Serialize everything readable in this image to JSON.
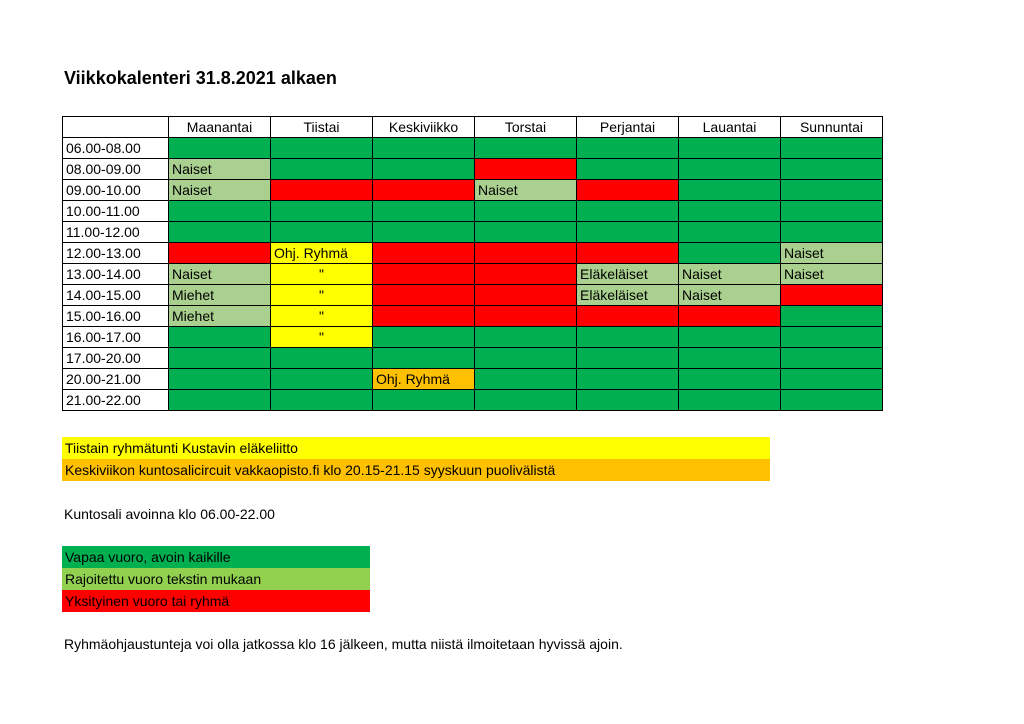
{
  "title": "Viikkokalenteri 31.8.2021 alkaen",
  "colors": {
    "G": "#00b050",
    "L": "#a9d08e",
    "R": "#ff0000",
    "Y": "#ffff00",
    "O": "#ffc000"
  },
  "days": [
    "Maanantai",
    "Tiistai",
    "Keskiviikko",
    "Torstai",
    "Perjantai",
    "Lauantai",
    "Sunnuntai"
  ],
  "rows": [
    {
      "time": "06.00-08.00",
      "cells": [
        [
          "G",
          ""
        ],
        [
          "G",
          ""
        ],
        [
          "G",
          ""
        ],
        [
          "G",
          ""
        ],
        [
          "G",
          ""
        ],
        [
          "G",
          ""
        ],
        [
          "G",
          ""
        ]
      ]
    },
    {
      "time": "08.00-09.00",
      "cells": [
        [
          "L",
          "Naiset"
        ],
        [
          "G",
          ""
        ],
        [
          "G",
          ""
        ],
        [
          "R",
          ""
        ],
        [
          "G",
          ""
        ],
        [
          "G",
          ""
        ],
        [
          "G",
          ""
        ]
      ]
    },
    {
      "time": "09.00-10.00",
      "cells": [
        [
          "L",
          "Naiset"
        ],
        [
          "R",
          ""
        ],
        [
          "R",
          ""
        ],
        [
          "L",
          "Naiset"
        ],
        [
          "R",
          ""
        ],
        [
          "G",
          ""
        ],
        [
          "G",
          ""
        ]
      ]
    },
    {
      "time": "10.00-11.00",
      "cells": [
        [
          "G",
          ""
        ],
        [
          "G",
          ""
        ],
        [
          "G",
          ""
        ],
        [
          "G",
          ""
        ],
        [
          "G",
          ""
        ],
        [
          "G",
          ""
        ],
        [
          "G",
          ""
        ]
      ]
    },
    {
      "time": "11.00-12.00",
      "cells": [
        [
          "G",
          ""
        ],
        [
          "G",
          ""
        ],
        [
          "G",
          ""
        ],
        [
          "G",
          ""
        ],
        [
          "G",
          ""
        ],
        [
          "G",
          ""
        ],
        [
          "G",
          ""
        ]
      ]
    },
    {
      "time": "12.00-13.00",
      "cells": [
        [
          "R",
          ""
        ],
        [
          "Y",
          "Ohj. Ryhmä"
        ],
        [
          "R",
          ""
        ],
        [
          "R",
          ""
        ],
        [
          "R",
          ""
        ],
        [
          "G",
          ""
        ],
        [
          "L",
          "Naiset"
        ]
      ]
    },
    {
      "time": "13.00-14.00",
      "cells": [
        [
          "L",
          "Naiset"
        ],
        [
          "Y",
          "\""
        ],
        [
          "R",
          ""
        ],
        [
          "R",
          ""
        ],
        [
          "L",
          "Eläkeläiset"
        ],
        [
          "L",
          "Naiset"
        ],
        [
          "L",
          "Naiset"
        ]
      ]
    },
    {
      "time": "14.00-15.00",
      "cells": [
        [
          "L",
          "Miehet"
        ],
        [
          "Y",
          "\""
        ],
        [
          "R",
          ""
        ],
        [
          "R",
          ""
        ],
        [
          "L",
          "Eläkeläiset"
        ],
        [
          "L",
          "Naiset"
        ],
        [
          "R",
          ""
        ]
      ]
    },
    {
      "time": "15.00-16.00",
      "cells": [
        [
          "L",
          "Miehet"
        ],
        [
          "Y",
          "\""
        ],
        [
          "R",
          ""
        ],
        [
          "R",
          ""
        ],
        [
          "R",
          ""
        ],
        [
          "R",
          ""
        ],
        [
          "G",
          ""
        ]
      ]
    },
    {
      "time": "16.00-17.00",
      "cells": [
        [
          "G",
          ""
        ],
        [
          "Y",
          "\""
        ],
        [
          "G",
          ""
        ],
        [
          "G",
          ""
        ],
        [
          "G",
          ""
        ],
        [
          "G",
          ""
        ],
        [
          "G",
          ""
        ]
      ]
    },
    {
      "time": "17.00-20.00",
      "cells": [
        [
          "G",
          ""
        ],
        [
          "G",
          ""
        ],
        [
          "G",
          ""
        ],
        [
          "G",
          ""
        ],
        [
          "G",
          ""
        ],
        [
          "G",
          ""
        ],
        [
          "G",
          ""
        ]
      ]
    },
    {
      "time": "20.00-21.00",
      "cells": [
        [
          "G",
          ""
        ],
        [
          "G",
          ""
        ],
        [
          "O",
          "Ohj. Ryhmä"
        ],
        [
          "G",
          ""
        ],
        [
          "G",
          ""
        ],
        [
          "G",
          ""
        ],
        [
          "G",
          ""
        ]
      ]
    },
    {
      "time": "21.00-22.00",
      "cells": [
        [
          "G",
          ""
        ],
        [
          "G",
          ""
        ],
        [
          "G",
          ""
        ],
        [
          "G",
          ""
        ],
        [
          "G",
          ""
        ],
        [
          "G",
          ""
        ],
        [
          "G",
          ""
        ]
      ]
    }
  ],
  "notes": {
    "yellow": "Tiistain ryhmätunti Kustavin eläkeliitto",
    "orange": "Keskiviikon kuntosalicircuit vakkaopisto.fi klo 20.15-21.15 syyskuun puolivälistä"
  },
  "open_hours": "Kuntosali avoinna klo 06.00-22.00",
  "legend": [
    {
      "code": "G",
      "label": "Vapaa vuoro, avoin kaikille"
    },
    {
      "code": "L2",
      "label": "Rajoitettu vuoro tekstin mukaan"
    },
    {
      "code": "R",
      "label": "Yksityinen vuoro tai ryhmä"
    }
  ],
  "legend_colors": {
    "G": "#00b050",
    "L2": "#92d050",
    "R": "#ff0000"
  },
  "footer": "Ryhmäohjaustunteja voi olla jatkossa klo 16 jälkeen, mutta niistä ilmoitetaan hyvissä ajoin."
}
